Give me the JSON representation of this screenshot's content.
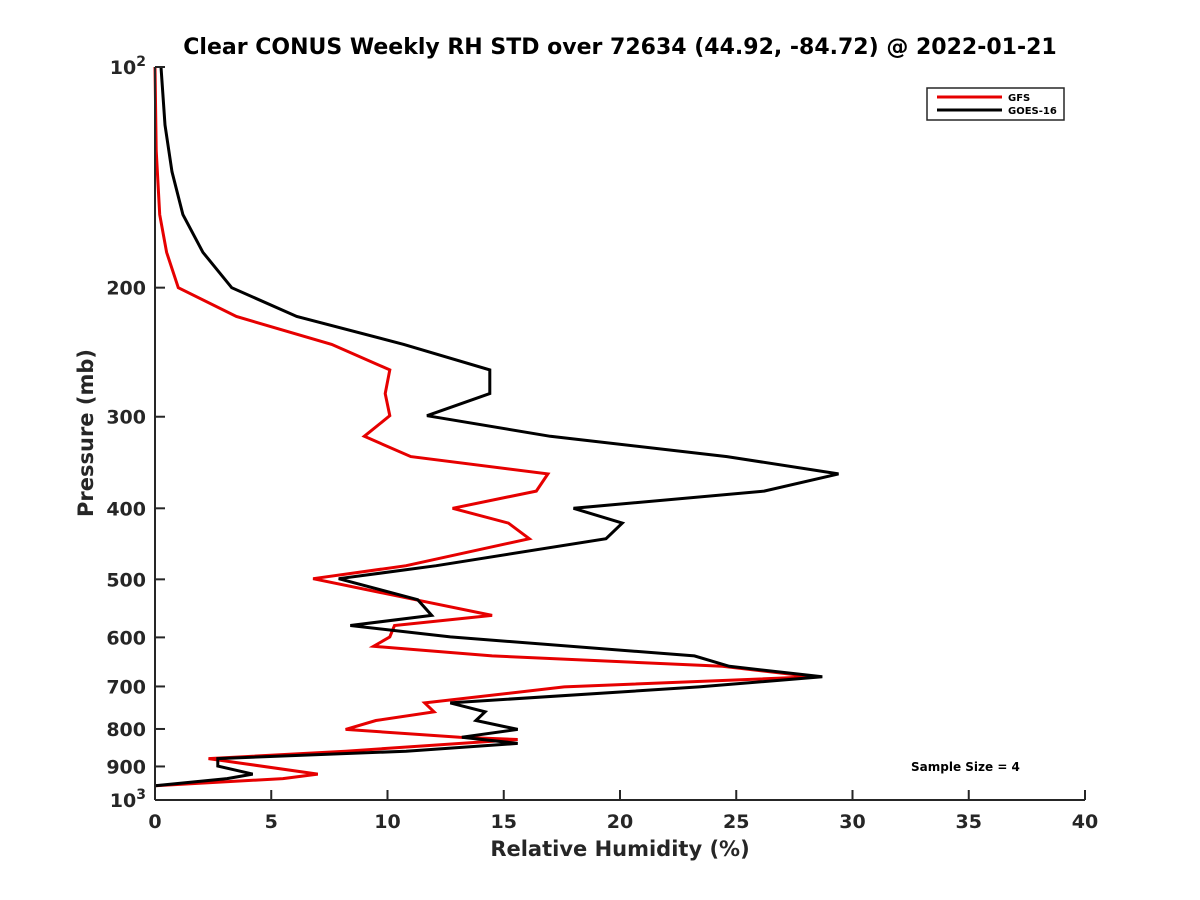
{
  "chart_data": {
    "type": "line",
    "title": "Clear CONUS Weekly RH STD over 72634 (44.92, -84.72) @ 2022-01-21",
    "xlabel": "Relative Humidity (%)",
    "ylabel": "Pressure (mb)",
    "xlim": [
      0,
      40
    ],
    "ylim": [
      100,
      1000
    ],
    "yscale": "log",
    "y_reversed": true,
    "grid": false,
    "legend_position": "top-right",
    "x_ticks": [
      0,
      5,
      10,
      15,
      20,
      25,
      30,
      35,
      40
    ],
    "x_tick_labels": [
      "0",
      "5",
      "10",
      "15",
      "20",
      "25",
      "30",
      "35",
      "40"
    ],
    "y_ticks": [
      100,
      200,
      300,
      400,
      500,
      600,
      700,
      800,
      900,
      1000
    ],
    "y_tick_labels": [
      {
        "base": "10",
        "exp": "2"
      },
      {
        "text": "200"
      },
      {
        "text": "300"
      },
      {
        "text": "400"
      },
      {
        "text": "500"
      },
      {
        "text": "600"
      },
      {
        "text": "700"
      },
      {
        "text": "800"
      },
      {
        "text": "900"
      },
      {
        "base": "10",
        "exp": "3"
      }
    ],
    "annotation": "Sample Size = 4",
    "series": [
      {
        "name": "GFS",
        "color": "#e60000",
        "points": [
          [
            0.0,
            100
          ],
          [
            0.05,
            130
          ],
          [
            0.2,
            159
          ],
          [
            0.5,
            179
          ],
          [
            1.0,
            200
          ],
          [
            3.5,
            219
          ],
          [
            7.6,
            239
          ],
          [
            10.1,
            259
          ],
          [
            9.9,
            279
          ],
          [
            10.1,
            299
          ],
          [
            9.0,
            319
          ],
          [
            11.0,
            340
          ],
          [
            16.9,
            359
          ],
          [
            16.4,
            379
          ],
          [
            12.8,
            400
          ],
          [
            15.2,
            419
          ],
          [
            16.1,
            440
          ],
          [
            10.8,
            479
          ],
          [
            6.8,
            499
          ],
          [
            11.2,
            533
          ],
          [
            14.5,
            560
          ],
          [
            10.3,
            578
          ],
          [
            10.1,
            599
          ],
          [
            9.4,
            617
          ],
          [
            14.5,
            636
          ],
          [
            24.4,
            657
          ],
          [
            28.3,
            679
          ],
          [
            17.6,
            701
          ],
          [
            11.6,
            737
          ],
          [
            12.0,
            758
          ],
          [
            9.5,
            779
          ],
          [
            8.2,
            801
          ],
          [
            13.1,
            821
          ],
          [
            15.6,
            827
          ],
          [
            8.2,
            858
          ],
          [
            2.3,
            878
          ],
          [
            7.0,
            922
          ],
          [
            5.5,
            935
          ],
          [
            0.0,
            956
          ]
        ]
      },
      {
        "name": "GOES-16",
        "color": "#000000",
        "points": [
          [
            0.26,
            100
          ],
          [
            0.43,
            120
          ],
          [
            0.73,
            139
          ],
          [
            1.2,
            159
          ],
          [
            2.06,
            179
          ],
          [
            3.3,
            200
          ],
          [
            6.1,
            219
          ],
          [
            10.7,
            239
          ],
          [
            14.4,
            259
          ],
          [
            14.4,
            279
          ],
          [
            11.7,
            299
          ],
          [
            17.0,
            319
          ],
          [
            24.6,
            340
          ],
          [
            29.4,
            359
          ],
          [
            26.2,
            379
          ],
          [
            18.0,
            400
          ],
          [
            20.1,
            419
          ],
          [
            19.4,
            440
          ],
          [
            12.1,
            479
          ],
          [
            7.9,
            499
          ],
          [
            11.3,
            533
          ],
          [
            11.9,
            560
          ],
          [
            8.4,
            578
          ],
          [
            12.7,
            599
          ],
          [
            23.2,
            636
          ],
          [
            24.7,
            657
          ],
          [
            28.7,
            679
          ],
          [
            23.4,
            701
          ],
          [
            12.7,
            737
          ],
          [
            14.2,
            758
          ],
          [
            13.8,
            779
          ],
          [
            15.6,
            801
          ],
          [
            13.2,
            821
          ],
          [
            15.6,
            837
          ],
          [
            10.8,
            858
          ],
          [
            2.7,
            878
          ],
          [
            2.7,
            899
          ],
          [
            4.2,
            922
          ],
          [
            3.1,
            935
          ],
          [
            0.0,
            956
          ]
        ]
      }
    ]
  }
}
